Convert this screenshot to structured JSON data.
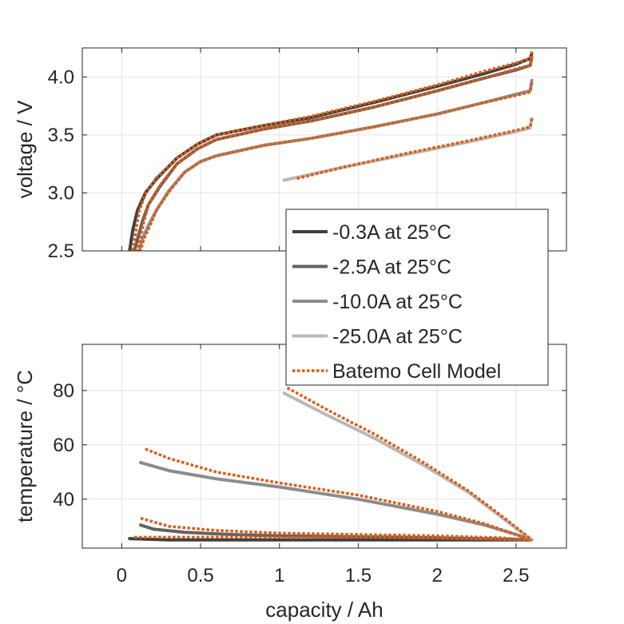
{
  "chart_data": [
    {
      "type": "line",
      "ylabel": "voltage / V",
      "xlim": [
        -0.25,
        2.82
      ],
      "ylim": [
        2.5,
        4.25
      ],
      "xticks": [
        0,
        0.5,
        1,
        1.5,
        2,
        2.5
      ],
      "yticks": [
        2.5,
        3.0,
        3.5,
        4.0
      ],
      "ytick_labels": [
        "2.5",
        "3.0",
        "3.5",
        "4.0"
      ],
      "grid": true,
      "legend": {
        "placement": "lower-right",
        "entries": [
          "-0.3A at 25°C",
          "-2.5A at 25°C",
          "-10.0A at 25°C",
          "-25.0A at 25°C",
          "Batemo Cell Model"
        ]
      },
      "series": [
        {
          "name": "-0.3A at 25°C",
          "color": "#404040",
          "x": [
            2.6,
            2.59,
            2.5,
            2.3,
            2.0,
            1.6,
            1.2,
            0.9,
            0.6,
            0.48,
            0.35,
            0.22,
            0.15,
            0.1,
            0.07,
            0.05
          ],
          "y": [
            4.2,
            4.16,
            4.11,
            4.03,
            3.92,
            3.78,
            3.65,
            3.58,
            3.5,
            3.42,
            3.3,
            3.12,
            3.0,
            2.85,
            2.68,
            2.5
          ]
        },
        {
          "name": "-2.5A at 25°C",
          "color": "#636363",
          "x": [
            2.6,
            2.59,
            2.5,
            2.3,
            2.0,
            1.6,
            1.2,
            0.9,
            0.6,
            0.48,
            0.35,
            0.24,
            0.17,
            0.13,
            0.1,
            0.08
          ],
          "y": [
            4.17,
            4.1,
            4.06,
            3.99,
            3.88,
            3.74,
            3.62,
            3.55,
            3.46,
            3.38,
            3.25,
            3.05,
            2.9,
            2.75,
            2.6,
            2.5
          ]
        },
        {
          "name": "-10.0A at 25°C",
          "color": "#8c8c8c",
          "x": [
            2.6,
            2.59,
            2.5,
            2.3,
            2.0,
            1.6,
            1.2,
            0.9,
            0.6,
            0.5,
            0.4,
            0.3,
            0.22,
            0.17,
            0.13,
            0.11
          ],
          "y": [
            3.97,
            3.88,
            3.85,
            3.78,
            3.68,
            3.57,
            3.47,
            3.41,
            3.32,
            3.27,
            3.18,
            3.02,
            2.85,
            2.72,
            2.6,
            2.5
          ]
        },
        {
          "name": "-25.0A at 25°C",
          "color": "#b8b8b8",
          "x": [
            2.6,
            2.59,
            2.5,
            2.2,
            1.8,
            1.4,
            1.03
          ],
          "y": [
            3.64,
            3.56,
            3.53,
            3.44,
            3.33,
            3.22,
            3.11
          ]
        },
        {
          "name": "Batemo Cell Model",
          "color": "#e15a10",
          "dash": true,
          "x": [
            2.6,
            2.59,
            2.5,
            2.3,
            2.0,
            1.6,
            1.2,
            0.9,
            0.6,
            0.48,
            0.35,
            0.22,
            0.15,
            0.11,
            0.09,
            0.07
          ],
          "y": [
            4.22,
            4.16,
            4.12,
            4.05,
            3.93,
            3.79,
            3.66,
            3.58,
            3.5,
            3.42,
            3.3,
            3.13,
            2.99,
            2.84,
            2.67,
            2.5
          ]
        },
        {
          "name": "",
          "color": "#e15a10",
          "dash": true,
          "x": [
            2.6,
            2.59,
            2.5,
            2.3,
            2.0,
            1.6,
            1.2,
            0.9,
            0.6,
            0.48,
            0.35,
            0.24,
            0.17,
            0.14,
            0.12,
            0.1
          ],
          "y": [
            4.18,
            4.1,
            4.07,
            3.99,
            3.88,
            3.74,
            3.62,
            3.55,
            3.46,
            3.38,
            3.25,
            3.06,
            2.9,
            2.75,
            2.62,
            2.5
          ]
        },
        {
          "name": "",
          "color": "#e15a10",
          "dash": true,
          "x": [
            2.6,
            2.59,
            2.5,
            2.3,
            2.0,
            1.6,
            1.2,
            0.9,
            0.6,
            0.5,
            0.4,
            0.3,
            0.22,
            0.18,
            0.14,
            0.12
          ],
          "y": [
            3.95,
            3.87,
            3.84,
            3.78,
            3.68,
            3.57,
            3.47,
            3.41,
            3.32,
            3.27,
            3.18,
            3.01,
            2.85,
            2.72,
            2.6,
            2.5
          ]
        },
        {
          "name": "",
          "color": "#e15a10",
          "dash": true,
          "x": [
            2.6,
            2.59,
            2.5,
            2.2,
            1.8,
            1.4,
            1.1
          ],
          "y": [
            3.64,
            3.57,
            3.54,
            3.45,
            3.34,
            3.22,
            3.12
          ]
        }
      ]
    },
    {
      "type": "line",
      "xlabel": "capacity / Ah",
      "ylabel": "temperature / °C",
      "xlim": [
        -0.25,
        2.82
      ],
      "ylim": [
        22,
        97
      ],
      "xticks": [
        0,
        0.5,
        1,
        1.5,
        2,
        2.5
      ],
      "xtick_labels": [
        "0",
        "0.5",
        "1",
        "1.5",
        "2",
        "2.5"
      ],
      "yticks": [
        40,
        60,
        80
      ],
      "ytick_labels": [
        "40",
        "60",
        "80"
      ],
      "grid": true,
      "series": [
        {
          "name": "-0.3A at 25°C",
          "color": "#404040",
          "x": [
            0.05,
            0.3,
            0.8,
            1.5,
            2.0,
            2.4,
            2.6
          ],
          "y": [
            25.5,
            25.0,
            25.0,
            25.0,
            25.0,
            25.0,
            25.0
          ]
        },
        {
          "name": "-2.5A at 25°C",
          "color": "#636363",
          "x": [
            0.12,
            0.2,
            0.4,
            0.7,
            1.0,
            1.5,
            2.0,
            2.4,
            2.6
          ],
          "y": [
            30.5,
            29.0,
            27.8,
            27.0,
            26.5,
            26.2,
            25.8,
            25.3,
            25.0
          ]
        },
        {
          "name": "-10.0A at 25°C",
          "color": "#8c8c8c",
          "x": [
            0.12,
            0.3,
            0.6,
            1.0,
            1.5,
            2.0,
            2.3,
            2.5,
            2.6
          ],
          "y": [
            53.5,
            50.5,
            47.5,
            44.5,
            40.0,
            34.5,
            30.5,
            27.0,
            25.0
          ]
        },
        {
          "name": "-25.0A at 25°C",
          "color": "#b8b8b8",
          "x": [
            1.03,
            1.3,
            1.6,
            1.9,
            2.2,
            2.45,
            2.6
          ],
          "y": [
            79.0,
            71.0,
            62.5,
            53.0,
            42.5,
            31.5,
            25.0
          ]
        },
        {
          "name": "Batemo Cell Model",
          "color": "#e15a10",
          "dash": true,
          "x": [
            0.15,
            0.3,
            0.6,
            1.0,
            1.5,
            2.0,
            2.3,
            2.5,
            2.6
          ],
          "y": [
            58.5,
            55.0,
            50.0,
            46.0,
            41.5,
            35.5,
            31.0,
            27.0,
            25.0
          ]
        },
        {
          "name": "",
          "color": "#e15a10",
          "dash": true,
          "x": [
            1.05,
            1.3,
            1.6,
            1.9,
            2.2,
            2.45,
            2.6
          ],
          "y": [
            81.0,
            73.0,
            64.0,
            54.0,
            43.0,
            32.0,
            25.0
          ]
        },
        {
          "name": "",
          "color": "#e15a10",
          "dash": true,
          "x": [
            0.12,
            0.3,
            0.6,
            1.0,
            1.5,
            2.0,
            2.4,
            2.6
          ],
          "y": [
            33.0,
            30.0,
            28.5,
            27.5,
            27.0,
            26.5,
            25.8,
            25.0
          ]
        },
        {
          "name": "",
          "color": "#e15a10",
          "dash": true,
          "x": [
            0.08,
            0.4,
            1.0,
            1.6,
            2.2,
            2.6
          ],
          "y": [
            26.0,
            26.0,
            26.0,
            26.0,
            25.5,
            25.0
          ]
        }
      ]
    }
  ]
}
